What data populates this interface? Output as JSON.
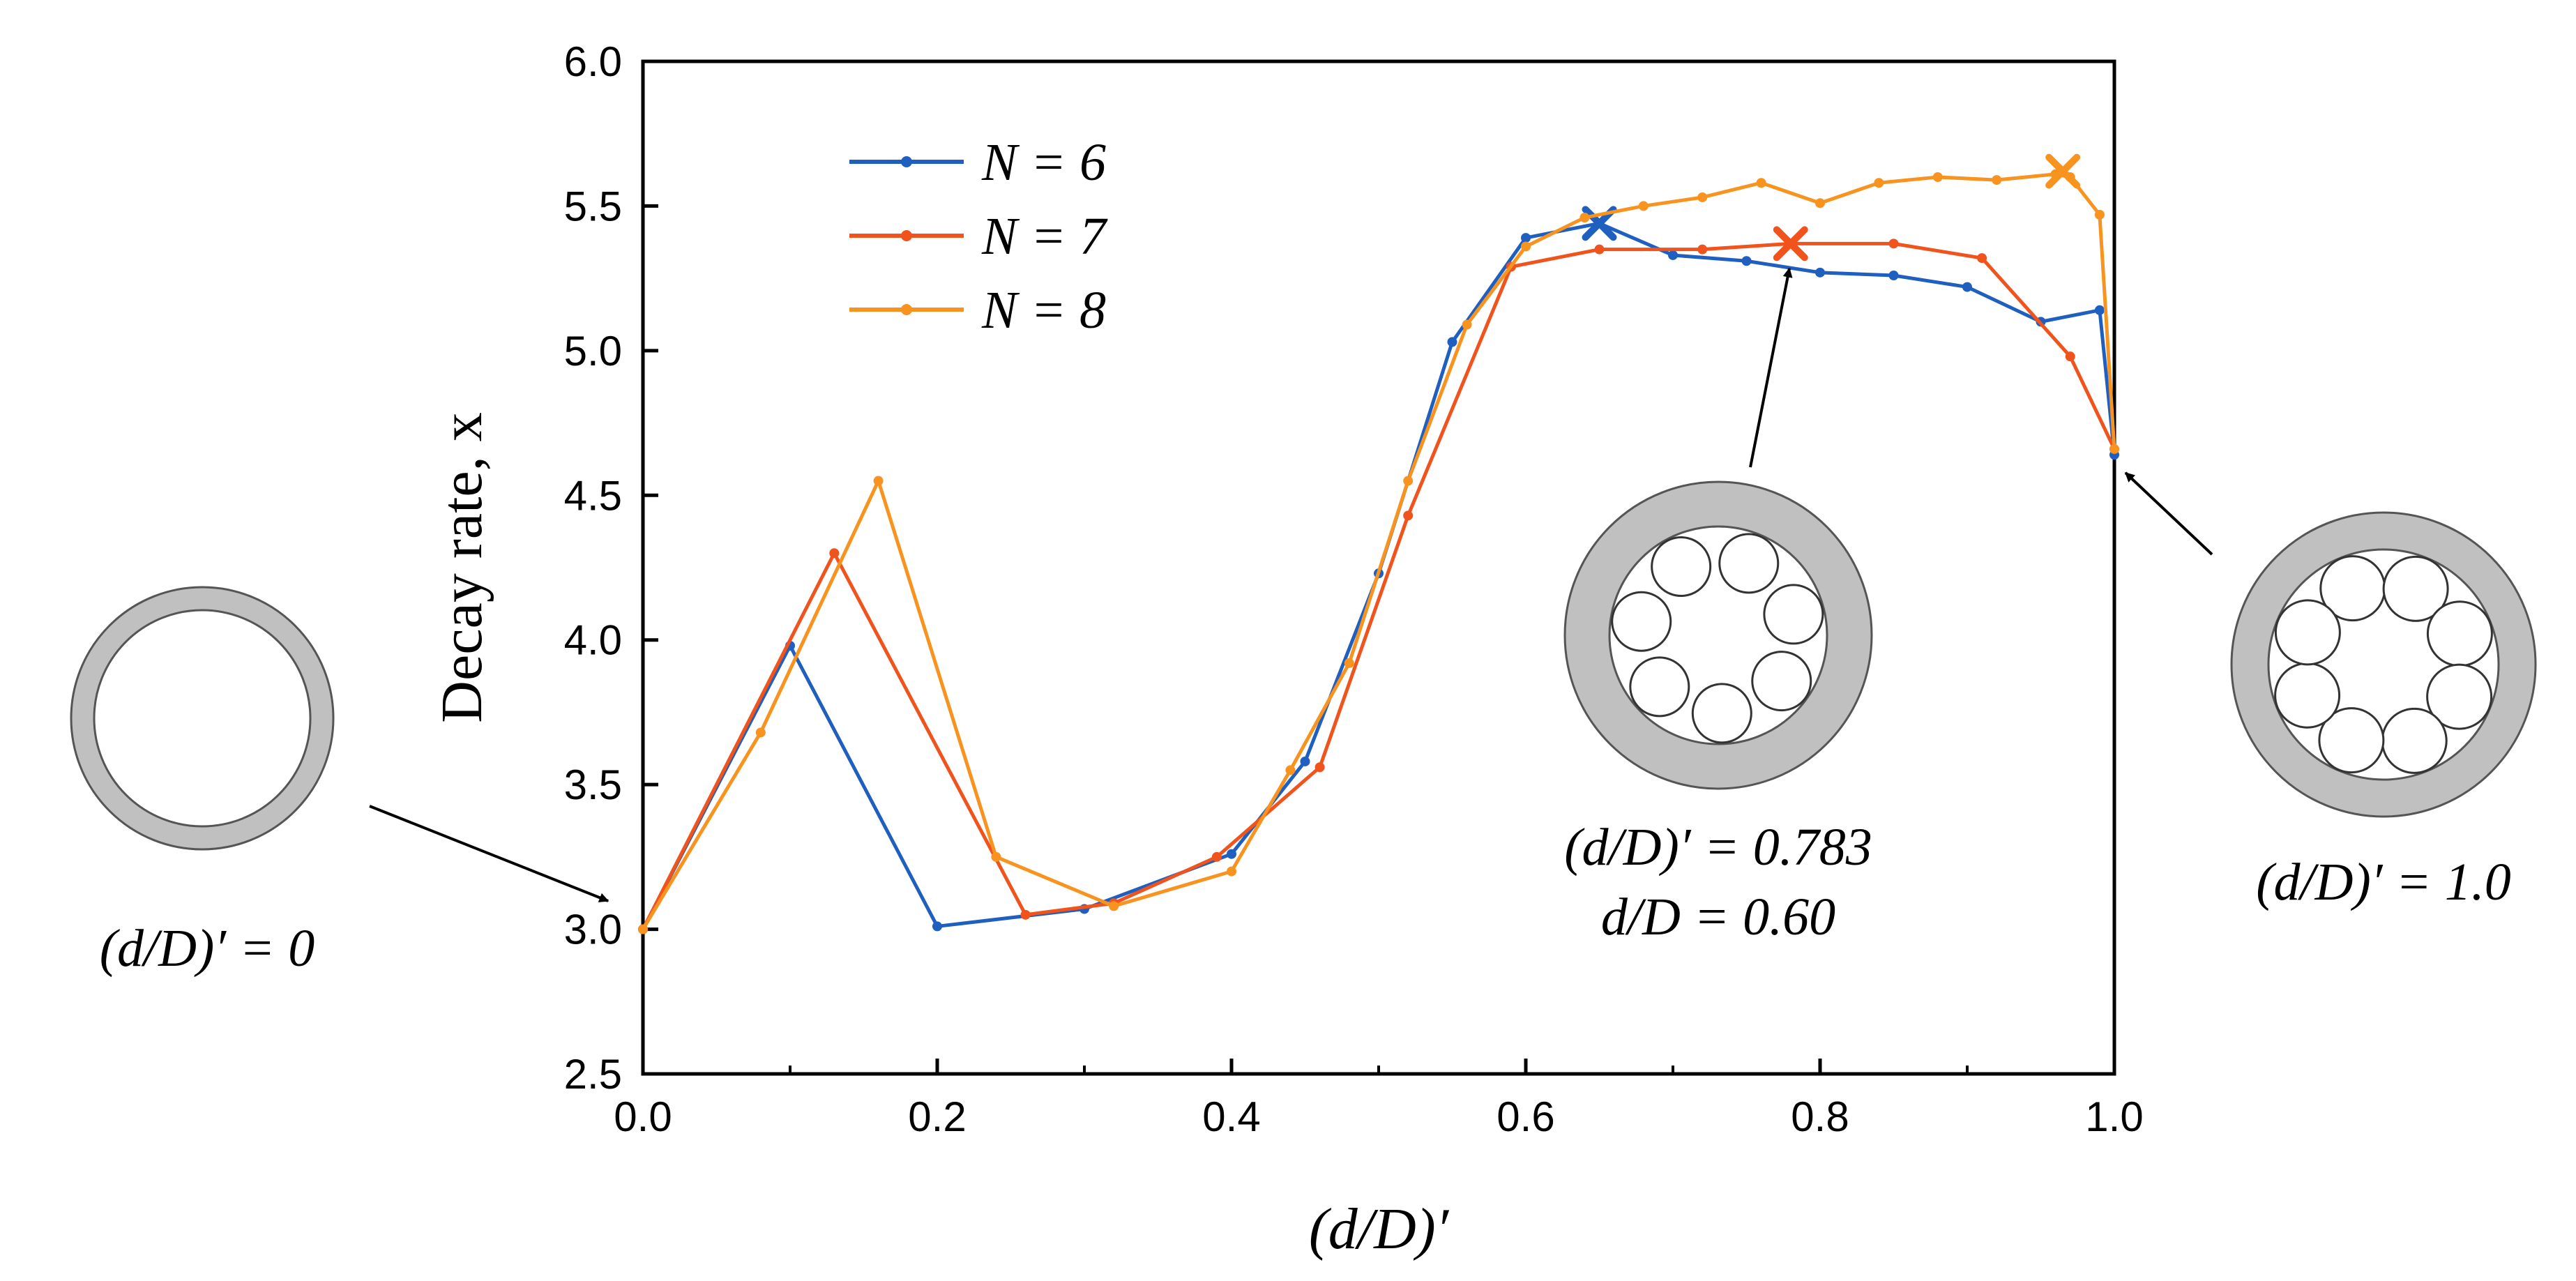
{
  "chart_data": {
    "type": "line",
    "xlabel": "(d/D)′",
    "ylabel": "Decay rate, x",
    "xlim": [
      0.0,
      1.0
    ],
    "ylim": [
      2.5,
      6.0
    ],
    "xticks": [
      "0.0",
      "0.2",
      "0.4",
      "0.6",
      "0.8",
      "1.0"
    ],
    "yticks": [
      "2.5",
      "3.0",
      "3.5",
      "4.0",
      "4.5",
      "5.0",
      "5.5",
      "6.0"
    ],
    "grid": false,
    "legend": "top-left",
    "series": [
      {
        "name": "N = 6",
        "color": "#1f5fbf",
        "x": [
          0.0,
          0.1,
          0.2,
          0.3,
          0.4,
          0.45,
          0.5,
          0.55,
          0.6,
          0.65,
          0.7,
          0.75,
          0.8,
          0.85,
          0.9,
          0.95,
          0.99,
          1.0
        ],
        "y": [
          3.0,
          3.98,
          3.01,
          3.07,
          3.26,
          3.58,
          4.23,
          5.03,
          5.39,
          5.44,
          5.33,
          5.31,
          5.27,
          5.26,
          5.22,
          5.1,
          5.14,
          4.64
        ],
        "max_marker": {
          "x": 0.65,
          "y": 5.44
        }
      },
      {
        "name": "N = 7",
        "color": "#f0541c",
        "x": [
          0.0,
          0.13,
          0.26,
          0.32,
          0.39,
          0.46,
          0.52,
          0.59,
          0.65,
          0.72,
          0.78,
          0.85,
          0.91,
          0.97,
          1.0
        ],
        "y": [
          3.0,
          4.3,
          3.05,
          3.09,
          3.25,
          3.56,
          4.43,
          5.29,
          5.35,
          5.35,
          5.37,
          5.37,
          5.32,
          4.98,
          4.66
        ],
        "max_marker": {
          "x": 0.78,
          "y": 5.37
        }
      },
      {
        "name": "N = 8",
        "color": "#f7931e",
        "x": [
          0.0,
          0.08,
          0.16,
          0.24,
          0.32,
          0.4,
          0.44,
          0.48,
          0.52,
          0.56,
          0.6,
          0.64,
          0.68,
          0.72,
          0.76,
          0.8,
          0.84,
          0.88,
          0.92,
          0.96,
          0.97,
          0.99,
          1.0
        ],
        "y": [
          3.0,
          3.68,
          4.55,
          3.25,
          3.08,
          3.2,
          3.55,
          3.92,
          4.55,
          5.09,
          5.36,
          5.46,
          5.5,
          5.53,
          5.58,
          5.51,
          5.58,
          5.6,
          5.59,
          5.61,
          5.6,
          5.47,
          4.66
        ],
        "max_marker": {
          "x": 0.965,
          "y": 5.62
        }
      }
    ]
  },
  "annotations": {
    "left": {
      "line1": "(d/D)′ = 0",
      "target": {
        "x": 0.0,
        "y": 3.0
      }
    },
    "middle": {
      "line1": "(d/D)′ = 0.783",
      "line2": "d/D = 0.60",
      "target": {
        "x": 0.783,
        "y": 5.37
      }
    },
    "right": {
      "line1": "(d/D)′ = 1.0",
      "target": {
        "x": 1.0,
        "y": 4.66
      }
    }
  },
  "colors": {
    "ring_fill": "#c0c0c0",
    "ring_stroke": "#555555",
    "axis": "#000000"
  }
}
